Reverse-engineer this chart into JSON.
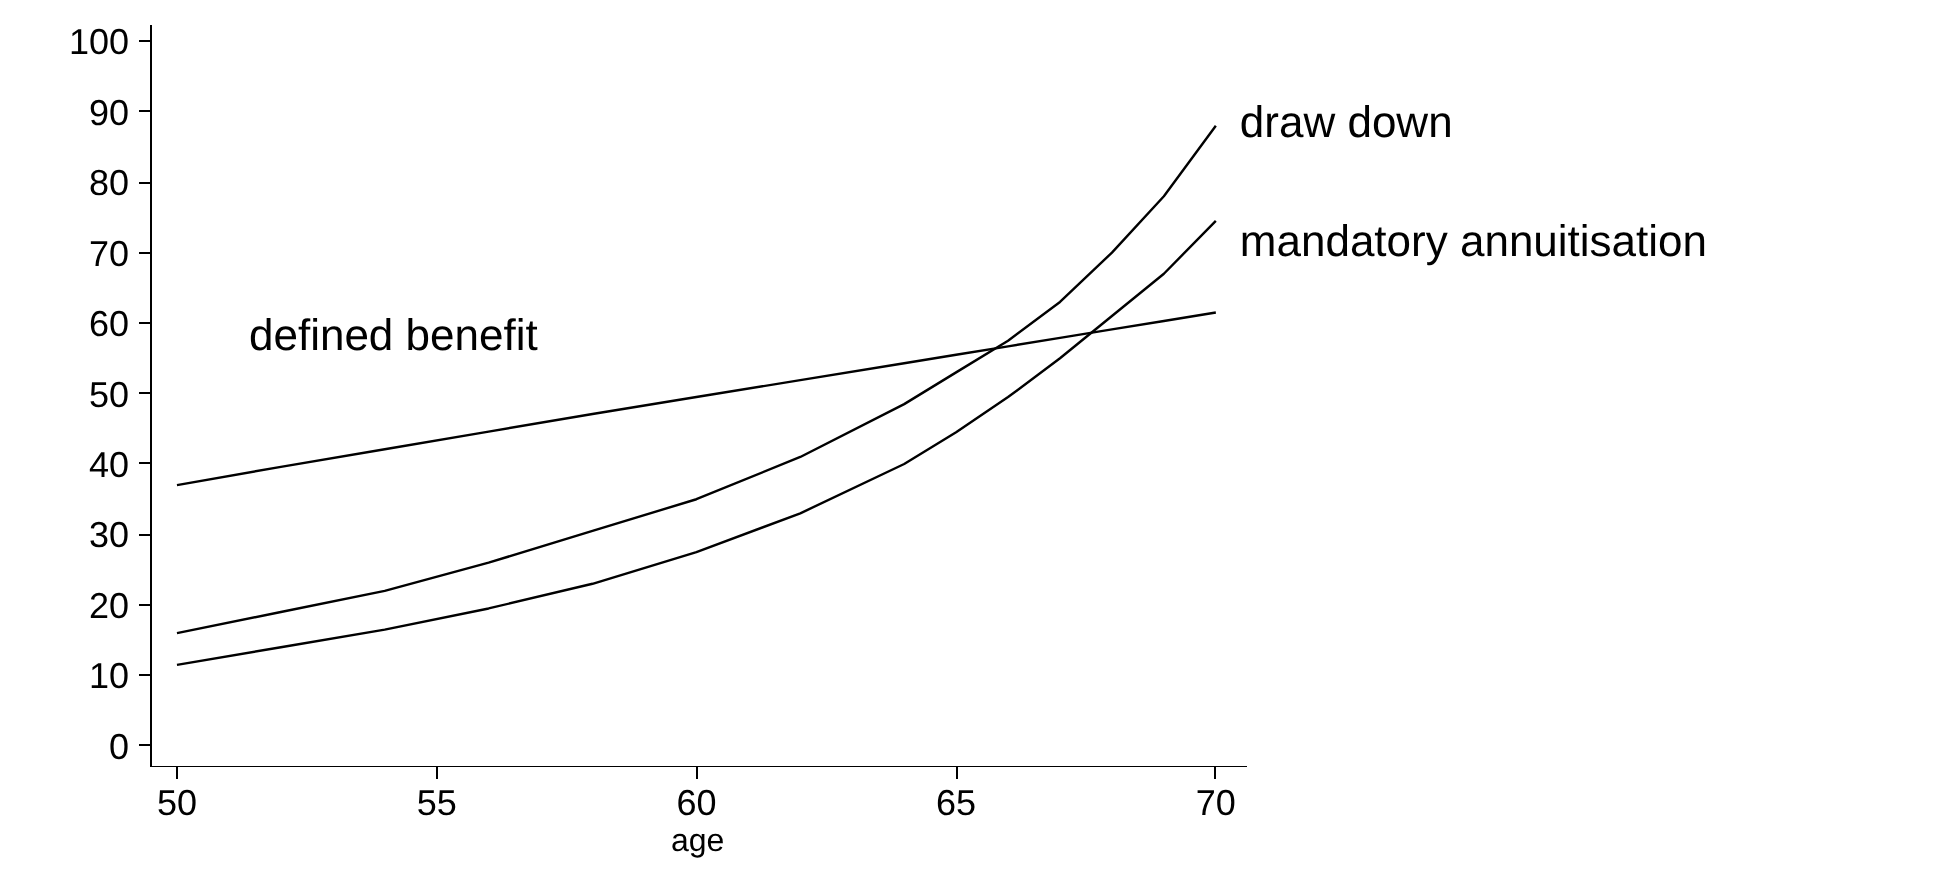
{
  "chart_data": {
    "type": "line",
    "xlabel": "age",
    "x": [
      50,
      52,
      54,
      56,
      58,
      60,
      62,
      64,
      65,
      66,
      67,
      68,
      69,
      70
    ],
    "series": [
      {
        "name": "draw down",
        "color": "#000000",
        "values": [
          16,
          19,
          22,
          26,
          30.5,
          35,
          41,
          48.5,
          53,
          57.5,
          63,
          70,
          78,
          88
        ]
      },
      {
        "name": "mandatory annuitisation",
        "color": "#000000",
        "values": [
          11.5,
          14,
          16.5,
          19.5,
          23,
          27.5,
          33,
          40,
          44.5,
          49.5,
          55,
          61,
          67,
          74.5
        ]
      },
      {
        "name": "defined benefit",
        "color": "#000000",
        "values": [
          37,
          39.6,
          42.1,
          44.6,
          47.1,
          49.5,
          51.9,
          54.3,
          55.5,
          56.7,
          57.9,
          59.1,
          60.3,
          61.5
        ]
      }
    ],
    "xlim": [
      49.5,
      70.6
    ],
    "ylim": [
      -3,
      102.3
    ],
    "xticks": [
      50,
      55,
      60,
      65,
      70
    ],
    "yticks": [
      0,
      10,
      20,
      30,
      40,
      50,
      60,
      70,
      80,
      90,
      100
    ],
    "grid": false,
    "marker": "none",
    "line_style": "solid"
  }
}
